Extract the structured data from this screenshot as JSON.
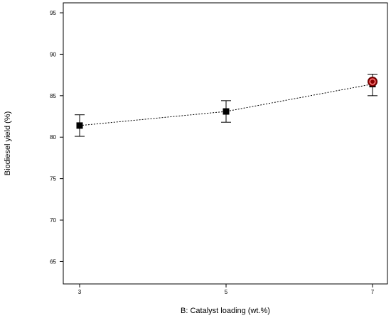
{
  "chart_data": {
    "type": "line",
    "title": "",
    "xlabel": "B: Catalyst loading (wt.%)",
    "ylabel": "Biodiesel yield (%)",
    "x": [
      3,
      5,
      7
    ],
    "x_ticks": [
      "3",
      "5",
      "7"
    ],
    "xlim": [
      3,
      7
    ],
    "y_ticks": [
      "65",
      "70",
      "75",
      "80",
      "85",
      "90",
      "95"
    ],
    "ylim": [
      62.3,
      96.2
    ],
    "grid": false,
    "series": [
      {
        "values": [
          81.4,
          83.1,
          86.4
        ],
        "error_low": [
          80.1,
          81.8,
          85.0
        ],
        "error_high": [
          82.7,
          84.4,
          87.6
        ],
        "line_style": "dotted",
        "color": "#000000"
      }
    ],
    "highlight_point": {
      "x": 7,
      "y": 86.7,
      "fill": "#8b0000",
      "ring": "#ff8080"
    }
  }
}
